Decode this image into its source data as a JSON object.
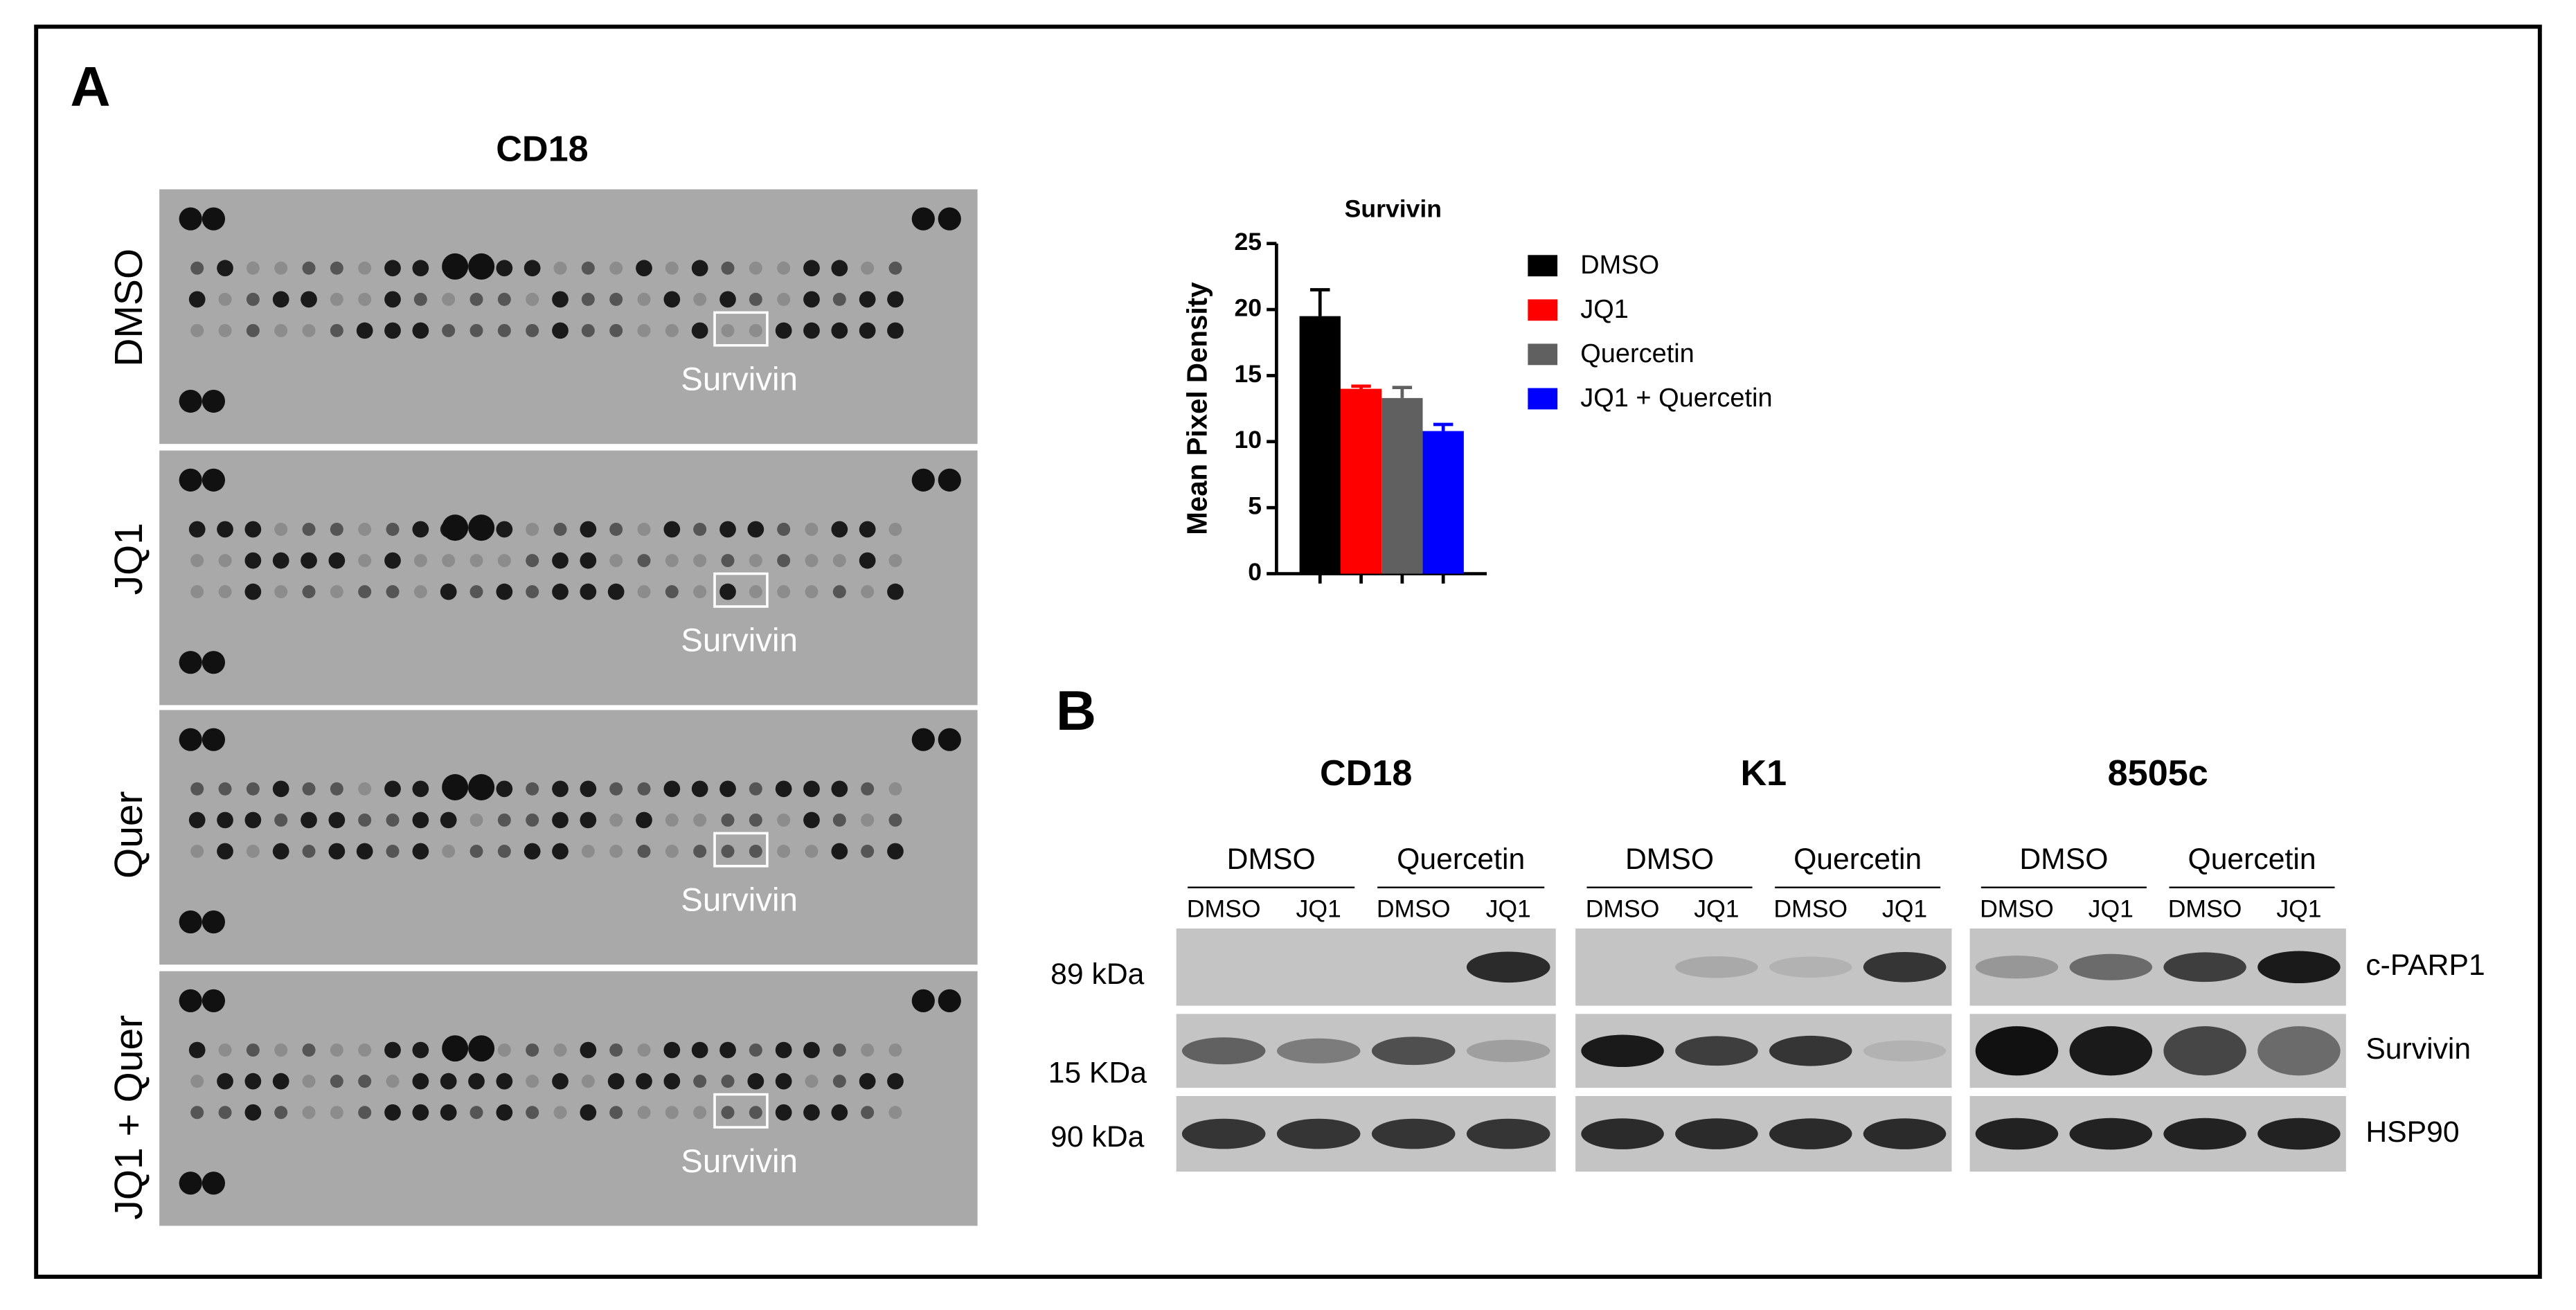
{
  "panel_labels": [
    "A",
    "B"
  ],
  "array": {
    "title": "CD18",
    "rows": [
      "DMSO",
      "JQ1",
      "Quer",
      "JQ1 + Quer"
    ],
    "box_label": "Survivin"
  },
  "chart_data": {
    "type": "bar",
    "title": "Survivin",
    "y_label": "Mean Pixel Density",
    "categories": [
      "DMSO",
      "JQ1",
      "Quercetin",
      "JQ1 + Quercetin"
    ],
    "values": [
      19.5,
      14,
      13.3,
      10.8
    ],
    "errors": [
      2,
      0.2,
      0.8,
      0.5
    ],
    "colors": [
      "#000000",
      "#ff0000",
      "#606060",
      "#0000ff"
    ],
    "ylim": [
      0,
      25
    ],
    "yticks": [
      0,
      5,
      10,
      15,
      20,
      25
    ]
  },
  "western": {
    "cell_lines": [
      "CD18",
      "K1",
      "8505c"
    ],
    "treatments": [
      "DMSO",
      "Quercetin"
    ],
    "lanes": [
      "DMSO",
      "JQ1"
    ],
    "mw_labels": [
      "89 kDa",
      "15 KDa",
      "90 kDa"
    ],
    "proteins": [
      "c-PARP1",
      "Survivin",
      "HSP90"
    ]
  }
}
